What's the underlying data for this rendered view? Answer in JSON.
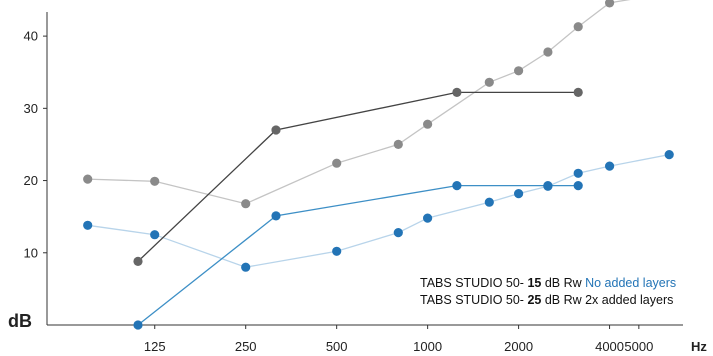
{
  "chart_data": {
    "type": "line",
    "x_scale": "log",
    "xlabel": "Hz",
    "ylabel": "dB",
    "xlim": [
      55,
      7000
    ],
    "ylim": [
      0,
      45
    ],
    "grid": false,
    "x_ticks": [
      {
        "value": 125,
        "label": "125"
      },
      {
        "value": 250,
        "label": "250"
      },
      {
        "value": 500,
        "label": "500"
      },
      {
        "value": 1000,
        "label": "1000"
      },
      {
        "value": 2000,
        "label": "2000"
      },
      {
        "value": 4000,
        "label": "4000"
      },
      {
        "value": 5000,
        "label": "5000"
      }
    ],
    "y_ticks": [
      10,
      20,
      30,
      40
    ],
    "series": [
      {
        "color": "#b8d4ea",
        "marker_color": "#2374b6",
        "points": [
          [
            75,
            13.8
          ],
          [
            125,
            12.5
          ],
          [
            250,
            8
          ],
          [
            500,
            10.2
          ],
          [
            800,
            12.8
          ],
          [
            1000,
            14.8
          ],
          [
            1600,
            17
          ],
          [
            2000,
            18.2
          ],
          [
            2500,
            19.2
          ],
          [
            3150,
            21
          ],
          [
            4000,
            22
          ],
          [
            6300,
            23.6
          ]
        ]
      },
      {
        "color": "#3d8fc6",
        "marker_color": "#2374b6",
        "points": [
          [
            110,
            0
          ],
          [
            315,
            15.1
          ],
          [
            1250,
            19.3
          ],
          [
            2500,
            19.3
          ],
          [
            3150,
            19.3
          ]
        ]
      },
      {
        "color": "#c4c4c4",
        "marker_color": "#8a8a8a",
        "points": [
          [
            75,
            20.2
          ],
          [
            125,
            19.9
          ],
          [
            250,
            16.8
          ],
          [
            500,
            22.4
          ],
          [
            800,
            25
          ],
          [
            1000,
            27.8
          ],
          [
            1600,
            33.6
          ],
          [
            2000,
            35.2
          ],
          [
            2500,
            37.8
          ],
          [
            3150,
            41.3
          ],
          [
            4000,
            44.6
          ],
          [
            6300,
            46
          ]
        ]
      },
      {
        "color": "#444444",
        "marker_color": "#666666",
        "points": [
          [
            110,
            8.8
          ],
          [
            315,
            27
          ],
          [
            1250,
            32.2
          ],
          [
            3150,
            32.2
          ]
        ]
      }
    ],
    "legend": {
      "placement": "bottom-right",
      "entries": [
        {
          "prefix": "TABS STUDIO 50- ",
          "value": "15",
          "suffix": " dB Rw ",
          "note": "No added layers",
          "note_color": "#2374b6"
        },
        {
          "prefix": "TABS STUDIO 50- ",
          "value": "25",
          "suffix": " dB Rw 2x added layers",
          "note": "",
          "note_color": "#111111"
        }
      ]
    }
  }
}
